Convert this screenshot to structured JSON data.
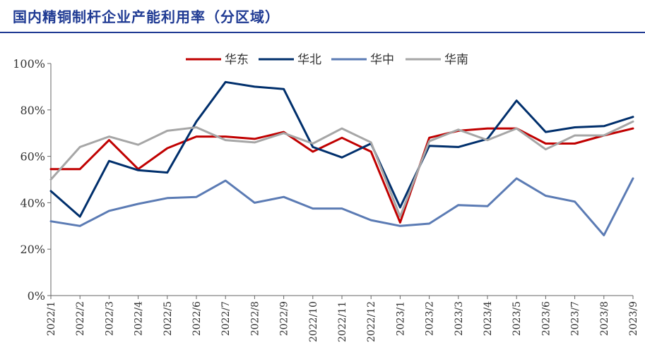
{
  "title": "国内精铜制杆企业产能利用率（分区域）",
  "chart_data": {
    "type": "line",
    "title": "国内精铜制杆企业产能利用率（分区域）",
    "xlabel": "",
    "ylabel": "",
    "ylim": [
      0,
      100
    ],
    "y_ticks": [
      "0%",
      "20%",
      "40%",
      "60%",
      "80%",
      "100%"
    ],
    "grid": false,
    "legend": "top-center",
    "categories": [
      "2022/1",
      "2022/2",
      "2022/3",
      "2022/4",
      "2022/5",
      "2022/6",
      "2022/7",
      "2022/8",
      "2022/9",
      "2022/10",
      "2022/11",
      "2022/12",
      "2023/1",
      "2023/2",
      "2023/3",
      "2023/4",
      "2023/5",
      "2023/6",
      "2023/7",
      "2023/8",
      "2023/9"
    ],
    "series": [
      {
        "name": "华东",
        "color": "#c00000",
        "values": [
          54.5,
          54.5,
          67,
          54.5,
          63.5,
          68.5,
          68.5,
          67.5,
          70.5,
          62,
          68,
          62,
          31.5,
          68,
          71,
          72,
          72,
          65.5,
          65.5,
          69,
          72
        ]
      },
      {
        "name": "华北",
        "color": "#002f6c",
        "values": [
          45,
          34,
          58,
          54,
          53,
          75,
          92,
          90,
          89,
          64,
          59.5,
          65.5,
          38,
          64.5,
          64,
          67.5,
          84,
          70.5,
          72.5,
          73,
          77
        ]
      },
      {
        "name": "华中",
        "color": "#5b7bb4",
        "values": [
          32,
          30,
          36.5,
          39.5,
          42,
          42.5,
          49.5,
          40,
          42.5,
          37.5,
          37.5,
          32.5,
          30,
          31,
          39,
          38.5,
          50.5,
          43,
          40.5,
          26,
          50.5
        ]
      },
      {
        "name": "华南",
        "color": "#a6a6a6",
        "values": [
          50,
          64,
          68.5,
          65,
          71,
          72.5,
          67,
          66,
          70,
          65.5,
          72,
          66,
          34,
          66.5,
          71.5,
          67,
          72,
          63,
          69,
          69,
          75
        ]
      }
    ]
  }
}
